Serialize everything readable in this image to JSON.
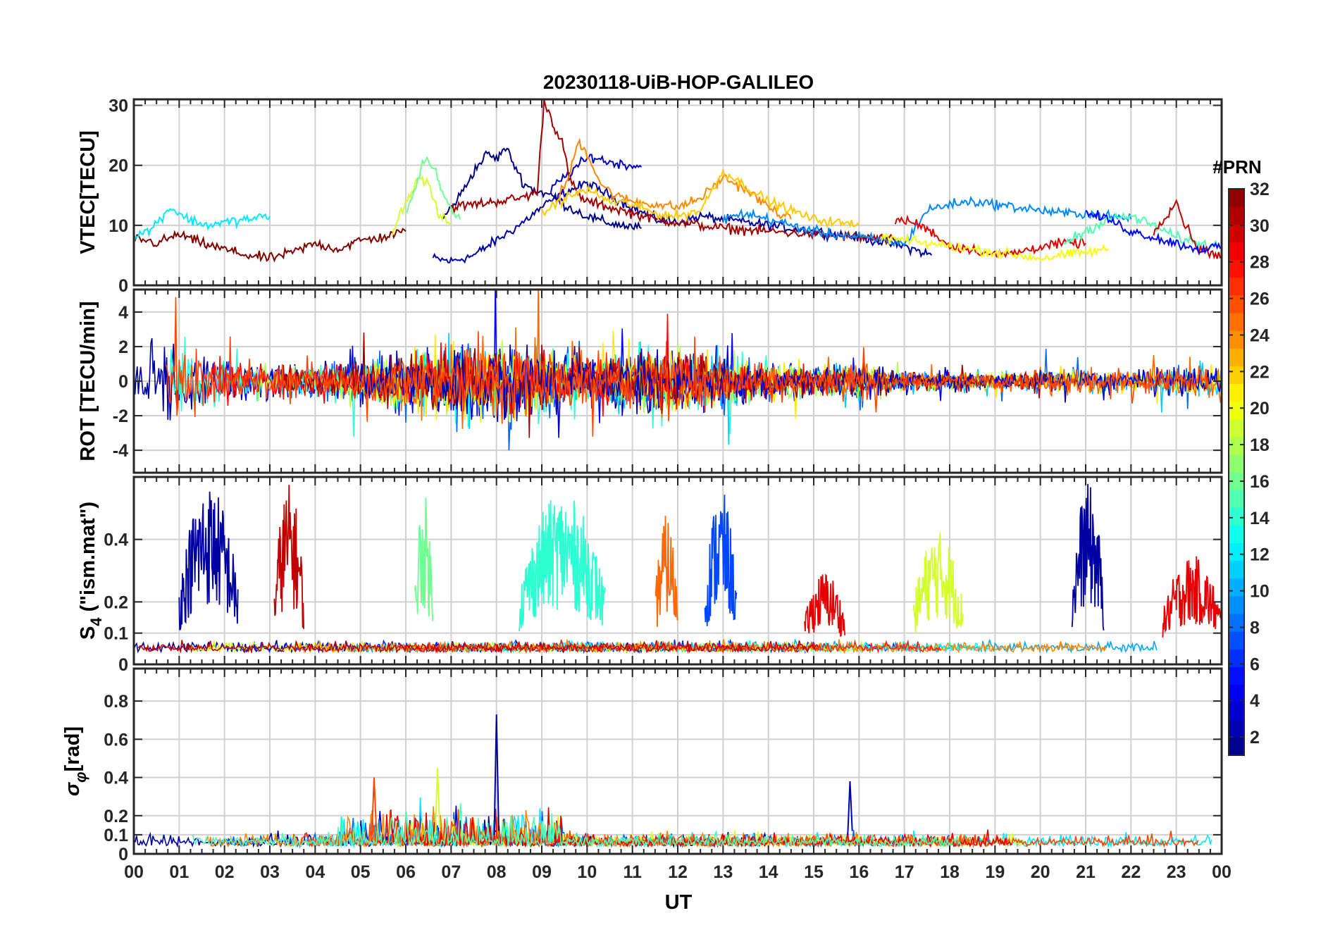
{
  "chart_data": {
    "type": "line",
    "title": "20230118-UiB-HOP-GALILEO",
    "xlabel": "UT",
    "x_range": [
      0,
      24
    ],
    "x_ticks": [
      0,
      1,
      2,
      3,
      4,
      5,
      6,
      7,
      8,
      9,
      10,
      11,
      12,
      13,
      14,
      15,
      16,
      17,
      18,
      19,
      20,
      21,
      22,
      23,
      24
    ],
    "x_tick_labels": [
      "00",
      "01",
      "02",
      "03",
      "04",
      "05",
      "06",
      "07",
      "08",
      "09",
      "10",
      "11",
      "12",
      "13",
      "14",
      "15",
      "16",
      "17",
      "18",
      "19",
      "20",
      "21",
      "22",
      "23",
      "00"
    ],
    "grid": true,
    "colorbar": {
      "label": "#PRN",
      "range": [
        1,
        32
      ],
      "ticks": [
        2,
        4,
        6,
        8,
        10,
        12,
        14,
        16,
        18,
        20,
        22,
        24,
        26,
        28,
        30,
        32
      ],
      "colormap": "jet",
      "placement": "right"
    },
    "panels": [
      {
        "id": "vtec",
        "ylabel": "VTEC[TECU]",
        "ylim": [
          0,
          31
        ],
        "yticks": [
          0,
          10,
          20,
          30
        ],
        "series": [
          {
            "prn": 2,
            "t": [
              6.6,
              7.0,
              7.5,
              8.0,
              8.5,
              9.0,
              9.5,
              10.0,
              10.5,
              11.0,
              11.5,
              12.0,
              12.5,
              13.0,
              14.0,
              15.0,
              16.0,
              17.0,
              17.6
            ],
            "y": [
              4.5,
              4.0,
              5.0,
              7.5,
              10.0,
              13.0,
              15.5,
              17.0,
              15.0,
              13.0,
              11.0,
              10.5,
              11.5,
              11.0,
              10.0,
              9.0,
              8.0,
              6.5,
              5.0
            ]
          },
          {
            "prn": 1,
            "t": [
              6.8,
              7.2,
              7.5,
              7.8,
              8.0,
              8.2,
              8.4,
              8.6,
              8.8,
              9.2,
              9.6,
              10.0,
              10.4,
              10.8,
              11.2
            ],
            "y": [
              11.0,
              15.0,
              19.0,
              22.0,
              21.0,
              23.0,
              20.0,
              17.0,
              16.0,
              15.0,
              13.0,
              11.5,
              10.5,
              10.0,
              9.5
            ]
          },
          {
            "prn": 3,
            "t": [
              9.2,
              9.5,
              9.8,
              10.1,
              10.5,
              11.0,
              11.2
            ],
            "y": [
              16.0,
              18.0,
              20.0,
              21.5,
              20.5,
              20.0,
              19.7
            ]
          },
          {
            "prn": 31,
            "t": [
              7.0,
              7.5,
              8.0,
              8.5,
              8.9,
              9.05,
              9.15,
              9.3,
              9.45,
              9.6,
              9.8,
              10.0,
              10.5,
              11.0,
              11.5,
              12.0,
              12.5,
              13.0,
              14.0,
              15.0,
              16.0,
              16.8
            ],
            "y": [
              13.0,
              13.5,
              14.0,
              14.5,
              15.5,
              30.8,
              29.0,
              26.0,
              24.0,
              18.0,
              15.0,
              14.0,
              13.0,
              12.0,
              11.0,
              10.5,
              10.0,
              9.5,
              9.0,
              8.5,
              8.0,
              7.5
            ]
          },
          {
            "prn": 32,
            "t": [
              0.0,
              0.5,
              1.0,
              1.5,
              2.0,
              2.5,
              3.0,
              3.5,
              4.0,
              4.5,
              5.0,
              5.5,
              6.0
            ],
            "y": [
              8.0,
              7.0,
              8.5,
              7.0,
              6.0,
              5.0,
              4.5,
              5.5,
              7.0,
              6.0,
              7.5,
              8.0,
              9.0
            ]
          },
          {
            "prn": 24,
            "t": [
              9.3,
              9.6,
              9.8,
              10.0,
              10.3,
              10.6,
              11.0,
              11.5,
              12.0,
              12.5,
              13.0,
              13.5,
              14.0,
              14.5
            ],
            "y": [
              14.0,
              18.0,
              24.0,
              22.0,
              17.0,
              15.0,
              14.0,
              13.5,
              13.0,
              14.5,
              18.0,
              16.0,
              13.0,
              11.0
            ]
          },
          {
            "prn": 22,
            "t": [
              9.0,
              9.5,
              10.0,
              10.5,
              11.0,
              11.5,
              12.0,
              12.5,
              13.0,
              14.0,
              15.0,
              16.0
            ],
            "y": [
              12.0,
              14.5,
              16.0,
              14.0,
              13.5,
              12.0,
              11.5,
              12.5,
              19.0,
              14.0,
              11.0,
              10.0
            ]
          },
          {
            "prn": 19,
            "t": [
              5.7,
              6.0,
              6.3,
              6.5,
              6.7,
              7.0
            ],
            "y": [
              9.0,
              14.0,
              18.0,
              17.0,
              12.0,
              10.0
            ]
          },
          {
            "prn": 16,
            "t": [
              6.0,
              6.2,
              6.4,
              6.6,
              6.9,
              7.2
            ],
            "y": [
              12.0,
              16.0,
              21.0,
              20.0,
              14.0,
              11.0
            ]
          },
          {
            "prn": 12,
            "t": [
              0.0,
              0.4,
              0.8,
              1.2,
              1.6,
              2.0,
              2.5,
              3.0
            ],
            "y": [
              8.0,
              9.5,
              13.0,
              11.0,
              10.0,
              10.5,
              11.0,
              11.5
            ]
          },
          {
            "prn": 9,
            "t": [
              13.0,
              13.5,
              14.0,
              14.5,
              15.0,
              15.5,
              16.0,
              16.5,
              17.0,
              17.5,
              18.0,
              18.5,
              19.0,
              19.5,
              20.0,
              20.5,
              21.0,
              21.5,
              22.0
            ],
            "y": [
              11.0,
              12.0,
              11.0,
              10.0,
              9.0,
              8.5,
              8.0,
              7.5,
              7.0,
              12.5,
              13.5,
              14.0,
              13.5,
              13.0,
              12.5,
              12.0,
              12.0,
              11.5,
              11.0
            ]
          },
          {
            "prn": 29,
            "t": [
              16.8,
              17.2,
              17.6,
              18.0,
              18.5,
              19.0,
              19.5,
              20.0,
              20.5,
              21.0
            ],
            "y": [
              11.0,
              10.5,
              9.0,
              6.5,
              6.0,
              5.0,
              5.5,
              6.5,
              7.0,
              7.0
            ]
          },
          {
            "prn": 20,
            "t": [
              16.5,
              17.0,
              17.5,
              18.0,
              18.5,
              19.0,
              19.5,
              20.0,
              20.5,
              21.0,
              21.5
            ],
            "y": [
              8.0,
              7.5,
              7.0,
              6.5,
              6.0,
              5.5,
              5.0,
              4.5,
              5.0,
              5.5,
              6.0
            ]
          },
          {
            "prn": 15,
            "t": [
              20.5,
              21.0,
              21.5,
              22.0,
              22.5,
              23.0,
              23.5,
              24.0
            ],
            "y": [
              7.0,
              9.0,
              11.0,
              11.5,
              10.0,
              8.0,
              7.0,
              6.5
            ]
          },
          {
            "prn": 30,
            "t": [
              22.5,
              22.8,
              23.0,
              23.2,
              23.5,
              24.0
            ],
            "y": [
              9.0,
              12.0,
              14.0,
              10.0,
              6.0,
              5.0
            ]
          },
          {
            "prn": 5,
            "t": [
              21.0,
              21.5,
              22.0,
              22.5,
              23.0,
              23.5,
              24.0
            ],
            "y": [
              12.0,
              11.0,
              9.0,
              8.0,
              7.0,
              6.0,
              6.5
            ]
          }
        ]
      },
      {
        "id": "rot",
        "ylabel": "ROT [TECU/min]",
        "ylim": [
          -5.3,
          5.3
        ],
        "yticks": [
          -4,
          -2,
          0,
          2,
          4
        ],
        "series_note": "noisy rate-of-TEC traces, amplitude envelope per hour",
        "envelope": {
          "t": [
            0,
            1,
            2,
            3,
            4,
            5,
            6,
            7,
            8,
            9,
            10,
            11,
            12,
            13,
            14,
            15,
            16,
            17,
            18,
            19,
            20,
            21,
            22,
            23,
            24
          ],
          "amp": [
            3.0,
            3.5,
            2.5,
            1.6,
            1.4,
            2.2,
            2.8,
            3.2,
            3.6,
            3.0,
            2.2,
            2.6,
            3.2,
            2.4,
            1.6,
            1.4,
            1.8,
            1.0,
            0.7,
            0.8,
            1.0,
            1.2,
            1.0,
            1.4,
            1.6
          ]
        }
      },
      {
        "id": "s4",
        "ylabel": "S4 (\"ism.mat\")",
        "ylabel_main": "S",
        "ylabel_sub": "4",
        "ylabel_rest": " (\"ism.mat\")",
        "ylim": [
          0,
          0.6
        ],
        "yticks": [
          0,
          0.1,
          0.2,
          0.4
        ],
        "ytick_labels": [
          "0",
          "0.1",
          "0.2",
          "0.4"
        ],
        "bursts": [
          {
            "prn": 2,
            "t0": 1.0,
            "t1": 2.3,
            "peak": 0.58
          },
          {
            "prn": 30,
            "t0": 3.1,
            "t1": 3.75,
            "peak": 0.58
          },
          {
            "prn": 16,
            "t0": 6.2,
            "t1": 6.6,
            "peak": 0.55
          },
          {
            "prn": 14,
            "t0": 8.5,
            "t1": 10.4,
            "peak": 0.55
          },
          {
            "prn": 25,
            "t0": 11.5,
            "t1": 12.0,
            "peak": 0.48
          },
          {
            "prn": 7,
            "t0": 12.6,
            "t1": 13.3,
            "peak": 0.56
          },
          {
            "prn": 29,
            "t0": 14.8,
            "t1": 15.7,
            "peak": 0.3
          },
          {
            "prn": 19,
            "t0": 17.2,
            "t1": 18.3,
            "peak": 0.43
          },
          {
            "prn": 2,
            "t0": 20.7,
            "t1": 21.4,
            "peak": 0.58
          },
          {
            "prn": 29,
            "t0": 22.7,
            "t1": 24.0,
            "peak": 0.35
          }
        ]
      },
      {
        "id": "sigma_phi",
        "ylabel": "σφ[rad]",
        "ylabel_main": "σ",
        "ylabel_sub": "φ",
        "ylabel_rest": "[rad]",
        "ylim": [
          0,
          0.97
        ],
        "yticks": [
          0,
          0.1,
          0.2,
          0.4,
          0.6,
          0.8
        ],
        "ytick_labels": [
          "0",
          "0.1",
          "0.2",
          "0.4",
          "0.6",
          "0.8"
        ],
        "peaks": [
          {
            "prn": 2,
            "t": 8.0,
            "value": 0.73
          },
          {
            "prn": 19,
            "t": 6.7,
            "value": 0.45
          },
          {
            "prn": 26,
            "t": 5.3,
            "value": 0.4
          },
          {
            "prn": 3,
            "t": 15.8,
            "value": 0.38
          }
        ]
      }
    ]
  }
}
